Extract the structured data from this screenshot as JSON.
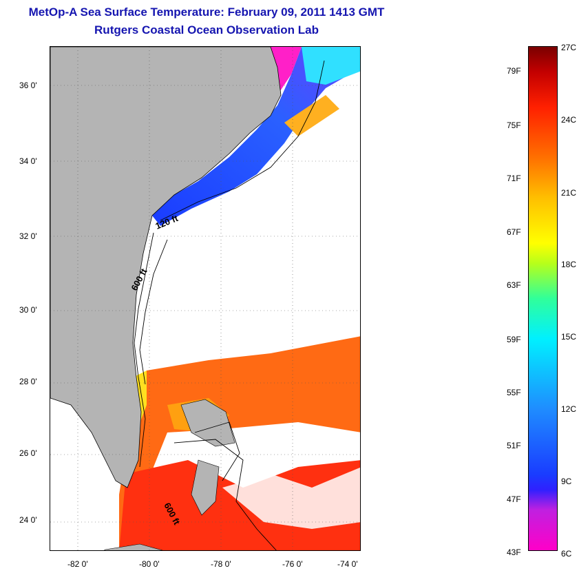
{
  "header": {
    "title": "MetOp-A Sea Surface Temperature:  February 09, 2011 1413 GMT",
    "subtitle": "Rutgers Coastal Ocean Observation Lab"
  },
  "map": {
    "lat_labels": [
      "36 0'",
      "34 0'",
      "32 0'",
      "30 0'",
      "28 0'",
      "26 0'",
      "24 0'"
    ],
    "lon_labels": [
      "-82 0'",
      "-80 0'",
      "-78 0'",
      "-76 0'",
      "-74 0'"
    ],
    "contour_labels": [
      "120 ft",
      "600 ft",
      "600 ft"
    ],
    "colors": {
      "land": "#b4b4b4",
      "ocean_clouds": "#ffffff",
      "cold": "#1a3cff",
      "warm": "#ff4a10"
    }
  },
  "colorbar": {
    "fahrenheit": [
      "79F",
      "75F",
      "71F",
      "67F",
      "63F",
      "59F",
      "55F",
      "51F",
      "47F",
      "43F"
    ],
    "celsius": [
      "27C",
      "24C",
      "21C",
      "18C",
      "15C",
      "12C",
      "9C",
      "6C"
    ]
  }
}
